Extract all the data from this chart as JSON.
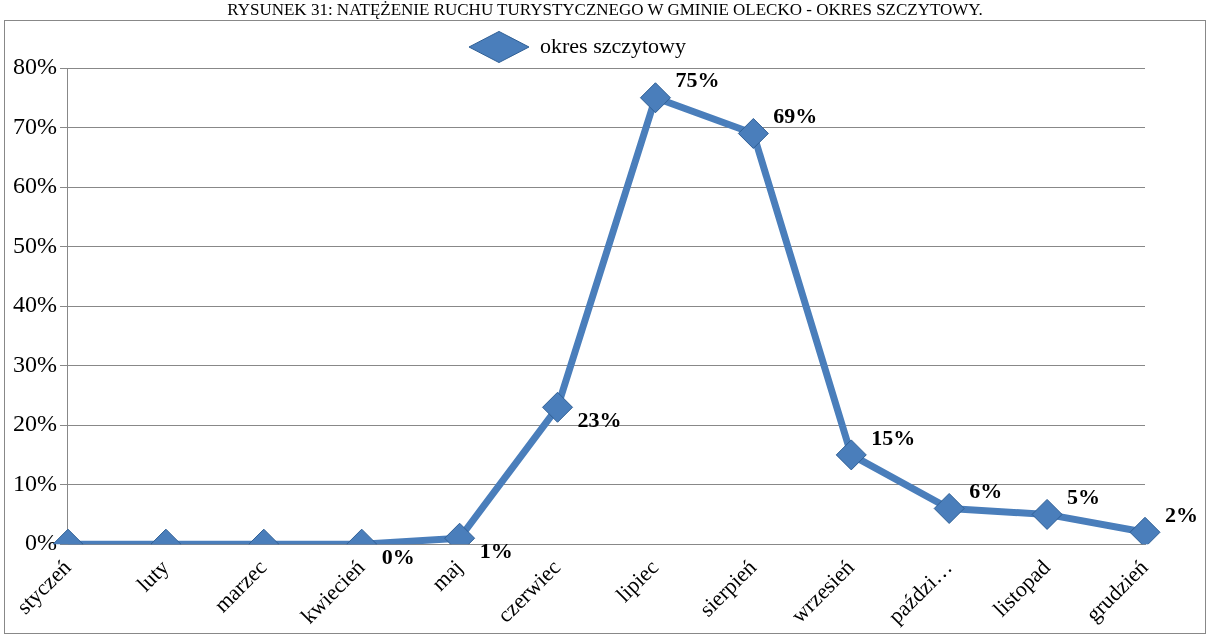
{
  "chart_data": {
    "type": "line",
    "title": "RYSUNEK 31: NATĘŻENIE RUCHU TURYSTYCZNEGO W GMINIE OLECKO - OKRES SZCZYTOWY.",
    "categories": [
      "styczeń",
      "luty",
      "marzec",
      "kwiecień",
      "maj",
      "czerwiec",
      "lipiec",
      "sierpień",
      "wrzesień",
      "paździ…",
      "listopad",
      "grudzień"
    ],
    "series": [
      {
        "name": "okres szczytowy",
        "color": "#4a7ebb",
        "values": [
          0,
          0,
          0,
          0,
          1,
          23,
          75,
          69,
          15,
          6,
          5,
          2
        ],
        "value_labels": [
          null,
          null,
          null,
          "0%",
          "1%",
          "23%",
          "75%",
          "69%",
          "15%",
          "6%",
          "5%",
          "2%"
        ]
      }
    ],
    "ylim": [
      0,
      80
    ],
    "yticks": [
      {
        "value": 0,
        "label": "0%"
      },
      {
        "value": 10,
        "label": "10%"
      },
      {
        "value": 20,
        "label": "20%"
      },
      {
        "value": 30,
        "label": "30%"
      },
      {
        "value": 40,
        "label": "40%"
      },
      {
        "value": 50,
        "label": "50%"
      },
      {
        "value": 60,
        "label": "60%"
      },
      {
        "value": 70,
        "label": "70%"
      },
      {
        "value": 80,
        "label": "80%"
      }
    ],
    "grid": "y",
    "legend": "top",
    "marker": "diamond",
    "line_style": "solid"
  }
}
